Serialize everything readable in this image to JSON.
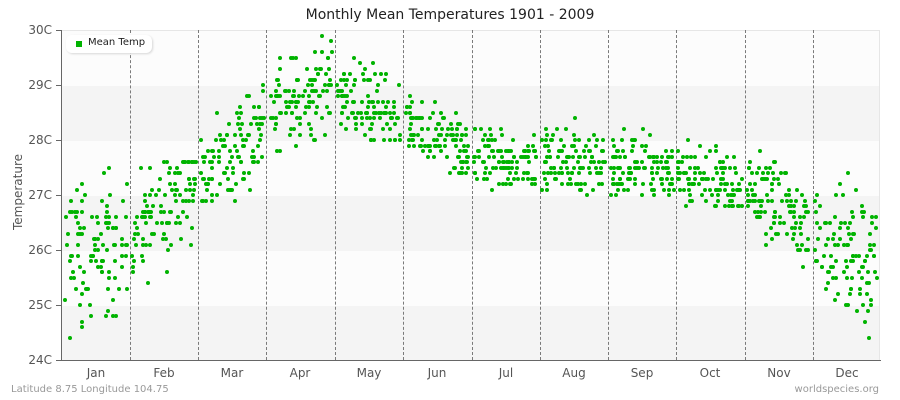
{
  "title": "Monthly Mean Temperatures 1901 - 2009",
  "footer": {
    "location": "Latitude 8.75 Longitude 104.75",
    "source": "worldspecies.org"
  },
  "legend": {
    "label": "Mean Temp",
    "color": "#00b300"
  },
  "axes": {
    "ylabel": "Temperature",
    "yticks": [
      "30C",
      "29C",
      "28C",
      "27C",
      "26C",
      "25C",
      "24C"
    ],
    "xticks": [
      "Jan",
      "Feb",
      "Mar",
      "Apr",
      "May",
      "Jun",
      "Jul",
      "Aug",
      "Sep",
      "Oct",
      "Nov",
      "Dec"
    ]
  },
  "chart_data": {
    "type": "scatter",
    "title": "Monthly Mean Temperatures 1901 - 2009",
    "xlabel": "",
    "ylabel": "Temperature",
    "ylim": [
      24,
      30
    ],
    "y_unit": "C",
    "grid": "alternating horizontal bands, dashed vertical month separators",
    "legend_position": "top-left",
    "series": [
      {
        "name": "Mean Temp",
        "color": "#00b300",
        "points_per_month": 109,
        "categories": [
          "Jan",
          "Feb",
          "Mar",
          "Apr",
          "May",
          "Jun",
          "Jul",
          "Aug",
          "Sep",
          "Oct",
          "Nov",
          "Dec"
        ],
        "min": [
          24.3,
          24.9,
          26.9,
          27.7,
          28.0,
          27.3,
          27.0,
          26.9,
          26.9,
          26.8,
          25.6,
          24.2
        ],
        "max": [
          27.7,
          27.6,
          29.1,
          29.9,
          29.9,
          28.8,
          28.6,
          28.5,
          28.5,
          28.4,
          27.8,
          27.6
        ],
        "mean": [
          26.0,
          26.8,
          27.8,
          28.8,
          28.6,
          28.0,
          27.6,
          27.6,
          27.5,
          27.3,
          26.8,
          26.0
        ]
      }
    ]
  }
}
